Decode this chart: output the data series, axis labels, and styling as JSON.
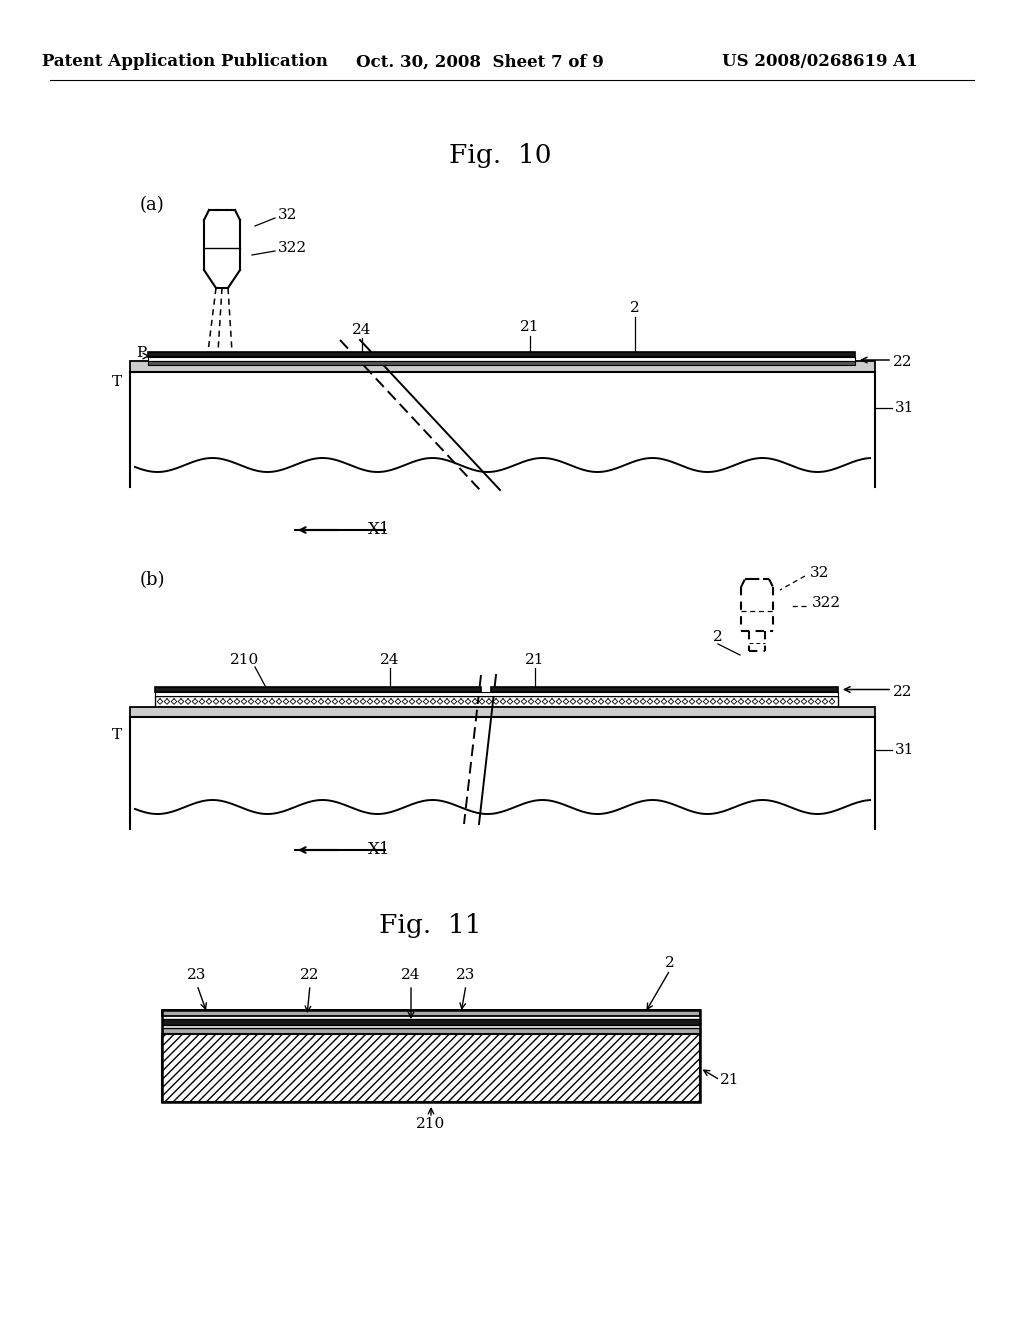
{
  "bg_color": "#ffffff",
  "header_left": "Patent Application Publication",
  "header_center": "Oct. 30, 2008  Sheet 7 of 9",
  "header_right": "US 2008/0268619 A1",
  "fig10_title": "Fig.  10",
  "fig11_title": "Fig.  11",
  "label_a": "(a)",
  "label_b": "(b)"
}
